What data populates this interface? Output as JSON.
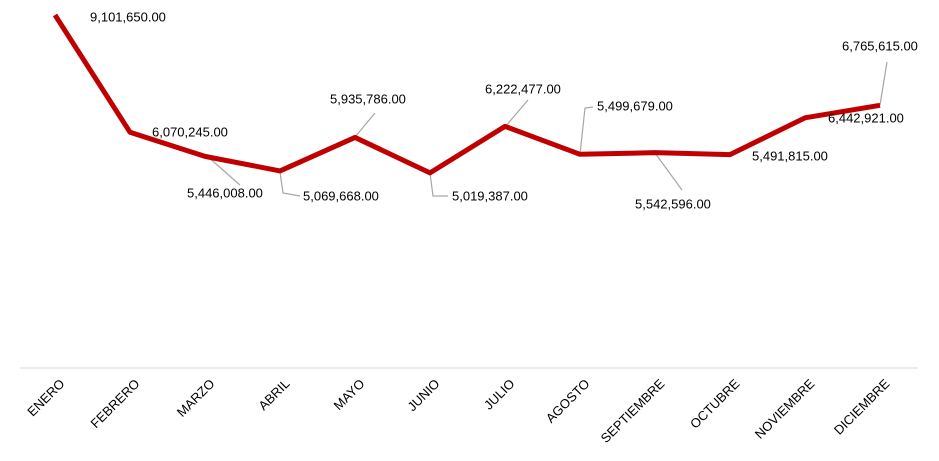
{
  "chart_data": {
    "type": "line",
    "categories": [
      "ENERO",
      "FEBRERO",
      "MARZO",
      "ABRIL",
      "MAYO",
      "JUNIO",
      "JULIO",
      "AGOSTO",
      "SEPTIEMBRE",
      "OCTUBRE",
      "NOVIEMBRE",
      "DICIEMBRE"
    ],
    "series": [
      {
        "color": "#c00000",
        "values": [
          9101650,
          6070245,
          5446008,
          5069668,
          5935786,
          5019387,
          6222477,
          5499679,
          5542596,
          5491815,
          6442921,
          6765615
        ],
        "value_labels": [
          "9,101,650.00",
          "6,070,245.00",
          "5,446,008.00",
          "5,069,668.00",
          "5,935,786.00",
          "5,019,387.00",
          "6,222,477.00",
          "5,499,679.00",
          "5,542,596.00",
          "5,491,815.00",
          "6,442,921.00",
          "6,765,615.00"
        ]
      }
    ]
  }
}
